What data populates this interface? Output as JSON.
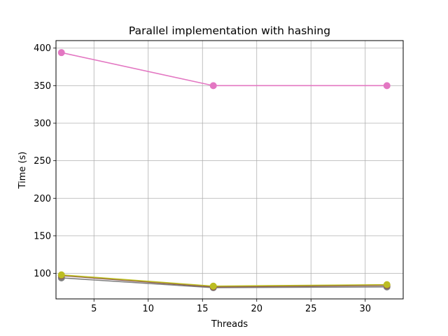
{
  "chart_data": {
    "type": "line",
    "title": "Parallel implementation with hashing",
    "xlabel": "Threads",
    "ylabel": "Time (s)",
    "xlim": [
      1.5,
      33.5
    ],
    "ylim": [
      66,
      410
    ],
    "xticks": [
      5,
      10,
      15,
      20,
      25,
      30
    ],
    "yticks": [
      100,
      150,
      200,
      250,
      300,
      350,
      400
    ],
    "grid": true,
    "x": [
      2,
      16,
      32
    ],
    "series": [
      {
        "values": [
          94,
          81,
          82
        ],
        "color": "#7f7f7f"
      },
      {
        "values": [
          97,
          82,
          84
        ],
        "color": "#8c564b"
      },
      {
        "values": [
          98,
          83,
          85
        ],
        "color": "#bcbd22"
      },
      {
        "values": [
          394,
          350,
          350
        ],
        "color": "#e377c2"
      }
    ]
  }
}
